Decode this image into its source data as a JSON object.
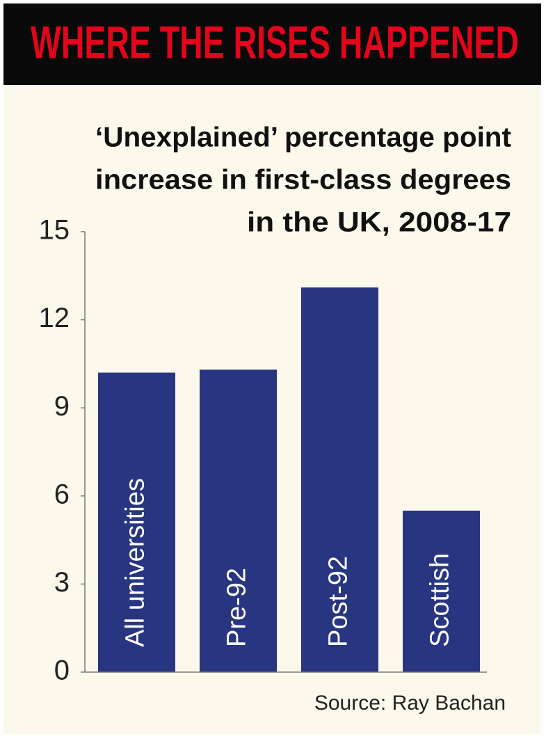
{
  "chart_data": {
    "type": "bar",
    "title": "WHERE THE RISES HAPPENED",
    "subtitle": [
      "‘Unexplained’ percentage point",
      "increase in first-class degrees",
      "in the UK, 2008-17"
    ],
    "categories": [
      "All universities",
      "Pre-92",
      "Post-92",
      "Scottish"
    ],
    "values": [
      10.2,
      10.3,
      13.1,
      5.5
    ],
    "color": "#283580",
    "ylim": [
      0,
      15
    ],
    "yticks": [
      0,
      3,
      6,
      9,
      12,
      15
    ],
    "grid": false,
    "source": "Source: Ray Bachan"
  }
}
